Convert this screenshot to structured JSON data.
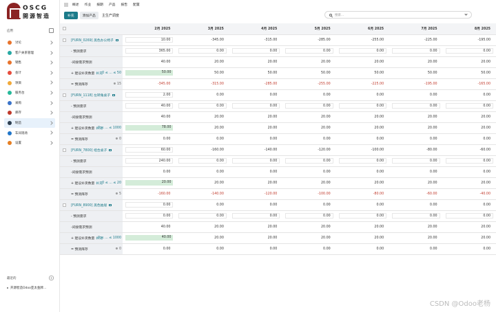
{
  "brand": {
    "en": "OSCG",
    "cn": "開源智造"
  },
  "sidebar": {
    "header": "应用",
    "items": [
      {
        "label": "讨论",
        "color": "#e8732c"
      },
      {
        "label": "客户关系管理",
        "color": "#27a9a4"
      },
      {
        "label": "销售",
        "color": "#e8732c"
      },
      {
        "label": "会计",
        "color": "#e74c3c"
      },
      {
        "label": "项目",
        "color": "#f1a93a"
      },
      {
        "label": "服务台",
        "color": "#26b99a"
      },
      {
        "label": "采购",
        "color": "#3b74c9"
      },
      {
        "label": "库存",
        "color": "#c0392b"
      },
      {
        "label": "制造",
        "color": "#2c3e50",
        "active": true
      },
      {
        "label": "车间现场",
        "color": "#2176c9"
      },
      {
        "label": "设置",
        "color": "#e67e22"
      }
    ],
    "recent_header": "最近的",
    "recent_plus": "+",
    "recent_item": "开源智造Odoo亚太金牌..."
  },
  "topmenu": [
    "概述",
    "作业",
    "报期",
    "产品",
    "报告",
    "配置"
  ],
  "toolbar": {
    "replenish": "补充",
    "add_product": "添加产品",
    "title": "主生产调度"
  },
  "search": {
    "placeholder": "搜索..."
  },
  "columns": [
    "2月 2025",
    "3月 2025",
    "4月 2025",
    "5月 2025",
    "6月 2025",
    "7月 2025",
    "8月 2025"
  ],
  "products": [
    {
      "name": "[FURN_0269] 黑色办公椅子",
      "top": "10.00",
      "topvals": [
        "-345.00",
        "-315.00",
        "-285.00",
        "-255.00",
        "-225.00",
        "-195.00"
      ],
      "forecast": [
        "365.00",
        "0.00",
        "0.00",
        "0.00",
        "0.00",
        "0.00",
        "0.00"
      ],
      "indirect": [
        "40.00",
        "20.00",
        "20.00",
        "20.00",
        "20.00",
        "20.00",
        "20.00"
      ],
      "range": "0 ≤ ... ≤ 50",
      "suggest": [
        "50.00",
        "50.00",
        "50.00",
        "50.00",
        "50.00",
        "50.00",
        "50.00"
      ],
      "inv_note": "15",
      "inventory": [
        "-345.00",
        "-315.00",
        "-285.00",
        "-255.00",
        "-225.00",
        "-195.00",
        "-165.00"
      ]
    },
    {
      "name": "[FURN_1118] 左转角桌子",
      "top": "2.00",
      "topvals": [
        "0.00",
        "0.00",
        "0.00",
        "0.00",
        "0.00",
        "0.00"
      ],
      "forecast": [
        "40.00",
        "0.00",
        "0.00",
        "0.00",
        "0.00",
        "0.00",
        "0.00"
      ],
      "indirect": [
        "40.00",
        "20.00",
        "20.00",
        "20.00",
        "20.00",
        "20.00",
        "20.00"
      ],
      "range": "0 ≤ ... ≤ 1000",
      "suggest": [
        "78.00",
        "20.00",
        "20.00",
        "20.00",
        "20.00",
        "20.00",
        "20.00"
      ],
      "inv_note": "0",
      "inventory": [
        "0.00",
        "0.00",
        "0.00",
        "0.00",
        "0.00",
        "0.00",
        "0.00"
      ]
    },
    {
      "name": "[FURN_7800] 组合桌子",
      "top": "60.00",
      "topvals": [
        "-160.00",
        "-140.00",
        "-120.00",
        "-100.00",
        "-80.00",
        "-60.00"
      ],
      "forecast": [
        "240.00",
        "0.00",
        "0.00",
        "0.00",
        "0.00",
        "0.00",
        "0.00"
      ],
      "indirect": [
        "0.00",
        "0.00",
        "0.00",
        "0.00",
        "0.00",
        "0.00",
        "0.00"
      ],
      "range": "0 ≤ ... ≤ 20",
      "suggest": [
        "20.00",
        "20.00",
        "20.00",
        "20.00",
        "20.00",
        "20.00",
        "20.00"
      ],
      "inv_note": "5",
      "inventory": [
        "-160.00",
        "-140.00",
        "-120.00",
        "-100.00",
        "-80.00",
        "-60.00",
        "-40.00"
      ]
    },
    {
      "name": "[FURN_8900] 黑色抽屉",
      "top": "0.00",
      "topvals": [
        "0.00",
        "0.00",
        "0.00",
        "0.00",
        "0.00",
        "0.00"
      ],
      "forecast": [
        "0.00",
        "0.00",
        "0.00",
        "0.00",
        "0.00",
        "0.00",
        "0.00"
      ],
      "indirect": [
        "40.00",
        "20.00",
        "20.00",
        "20.00",
        "20.00",
        "20.00",
        "20.00"
      ],
      "range": "0 ≤ ... ≤ 1000",
      "suggest": [
        "40.00",
        "20.00",
        "20.00",
        "20.00",
        "20.00",
        "20.00",
        "20.00"
      ],
      "inv_note": "0",
      "inventory": [
        "0.00",
        "0.00",
        "0.00",
        "0.00",
        "0.00",
        "0.00",
        "0.00"
      ]
    }
  ],
  "row_labels": {
    "forecast": "- 预测需求",
    "indirect": "-间接需求预测",
    "suggest": "+ 建议补货数量",
    "suggest_suffix": "补充",
    "inventory": "= 预测库存"
  },
  "watermark": "CSDN @Odoo老杨"
}
